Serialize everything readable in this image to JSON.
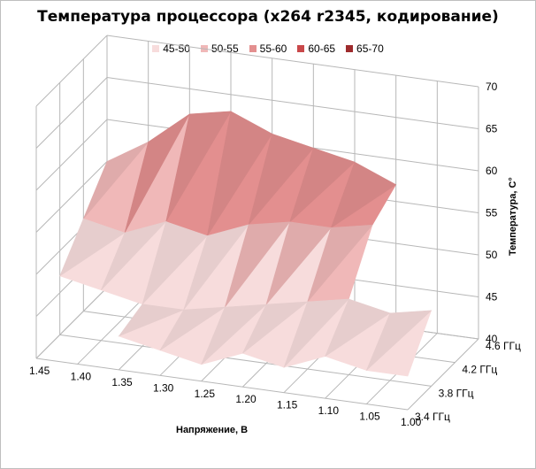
{
  "chart_data": {
    "type": "surface",
    "title": "Температура процессора (x264 r2345, кодирование)",
    "xlabel": "Напряжение, В",
    "ylabel": "",
    "zlabel": "Температура, C°",
    "x": [
      "1.45",
      "1.40",
      "1.35",
      "1.30",
      "1.25",
      "1.20",
      "1.15",
      "1.10",
      "1.05",
      "1.00"
    ],
    "y": [
      "3.4 ГГц",
      "3.8 ГГц",
      "4.2 ГГц",
      "4.6 ГГц"
    ],
    "zlim": [
      40,
      70
    ],
    "z_ticks": [
      40,
      45,
      50,
      55,
      60,
      65,
      70
    ],
    "grid": true,
    "legend_position": "top",
    "legend": [
      {
        "label": "45-50",
        "color": "#f7dcdc"
      },
      {
        "label": "50-55",
        "color": "#f0b8b8"
      },
      {
        "label": "55-60",
        "color": "#e38f8f"
      },
      {
        "label": "60-65",
        "color": "#c9484a"
      },
      {
        "label": "65-70",
        "color": "#9e2b2d"
      }
    ],
    "series": [
      {
        "y": "3.4 ГГц",
        "values": [
          null,
          null,
          44,
          43,
          42,
          44,
          43,
          45,
          44,
          44
        ]
      },
      {
        "y": "3.8 ГГц",
        "values": [
          47,
          46,
          45,
          45,
          46,
          47,
          48,
          49,
          48,
          49
        ]
      },
      {
        "y": "4.2 ГГц",
        "values": [
          51,
          50,
          52,
          51,
          53,
          54,
          54,
          55,
          null,
          null
        ]
      },
      {
        "y": "4.6 ГГц",
        "values": [
          55,
          58,
          62,
          63,
          61,
          60,
          59,
          57,
          null,
          null
        ]
      }
    ]
  }
}
